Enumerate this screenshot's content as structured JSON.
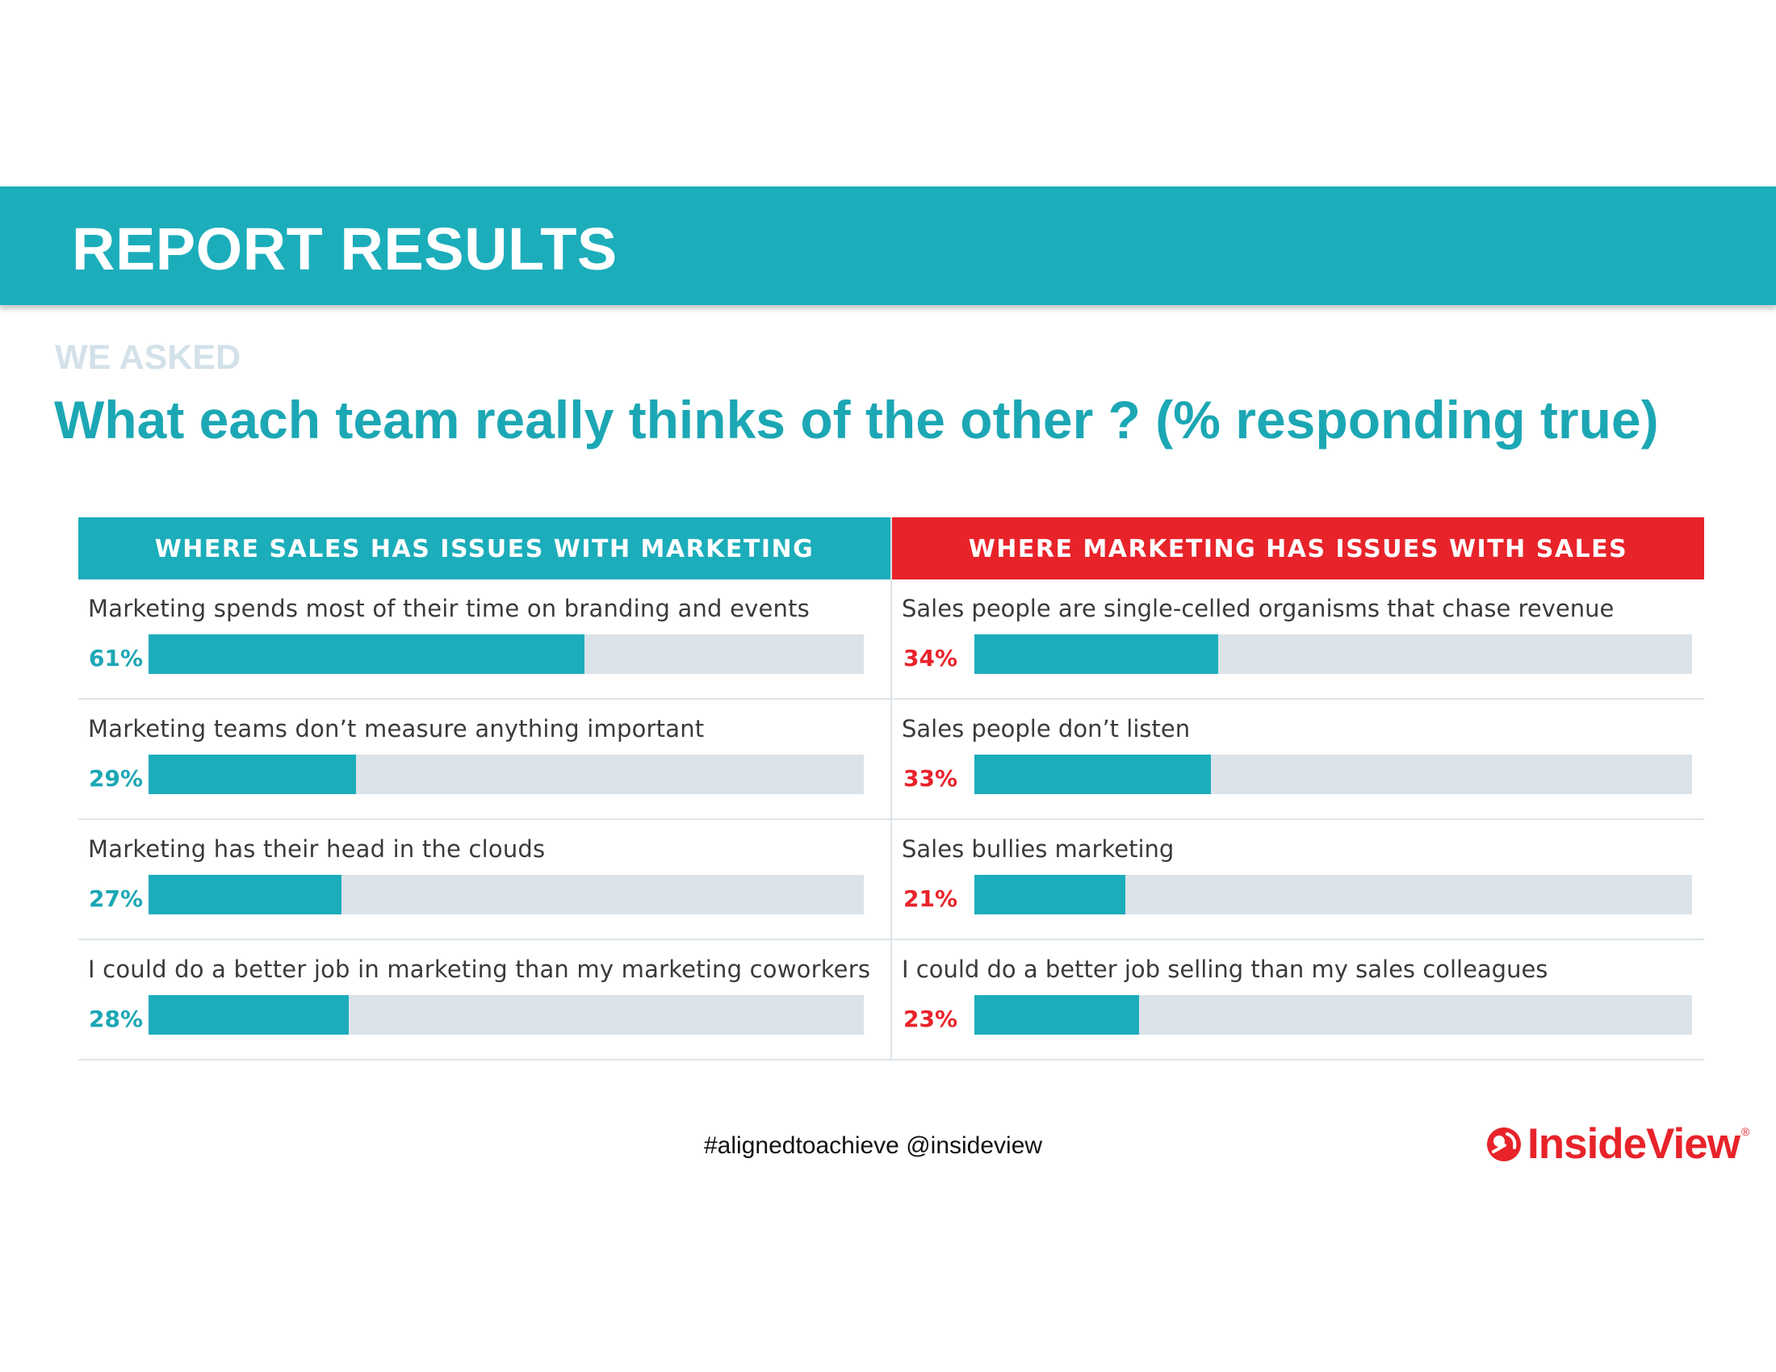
{
  "header": {
    "title": "REPORT RESULTS"
  },
  "eyebrow": "WE ASKED",
  "question": "What each team really thinks of the other ? (% responding true)",
  "colors": {
    "teal": "#1cadbb",
    "red": "#e8232a",
    "track": "#dbe3e9"
  },
  "chart_data": {
    "type": "bar",
    "orientation": "horizontal",
    "xlim": [
      0,
      100
    ],
    "panels": [
      {
        "title": "WHERE SALES HAS ISSUES WITH MARKETING",
        "color": "#1cadbb",
        "items": [
          {
            "label": "Marketing spends most of their time on branding and events",
            "value": 61,
            "value_label": "61%"
          },
          {
            "label": "Marketing teams don’t measure anything important",
            "value": 29,
            "value_label": "29%"
          },
          {
            "label": "Marketing has their head in the clouds",
            "value": 27,
            "value_label": "27%"
          },
          {
            "label": "I could do a better job in marketing than my marketing coworkers",
            "value": 28,
            "value_label": "28%"
          }
        ]
      },
      {
        "title": "WHERE MARKETING HAS ISSUES WITH SALES",
        "color": "#e8232a",
        "items": [
          {
            "label": "Sales people are single-celled organisms that chase revenue",
            "value": 34,
            "value_label": "34%"
          },
          {
            "label": "Sales people don’t listen",
            "value": 33,
            "value_label": "33%"
          },
          {
            "label": "Sales bullies marketing",
            "value": 21,
            "value_label": "21%"
          },
          {
            "label": "I could do a better job selling than my sales colleagues",
            "value": 23,
            "value_label": "23%"
          }
        ]
      }
    ]
  },
  "footer": {
    "hashtag": "#alignedtoachieve @insideview"
  },
  "logo": {
    "text": "InsideView",
    "mark": "insideview-logo-icon",
    "reg": "®"
  }
}
